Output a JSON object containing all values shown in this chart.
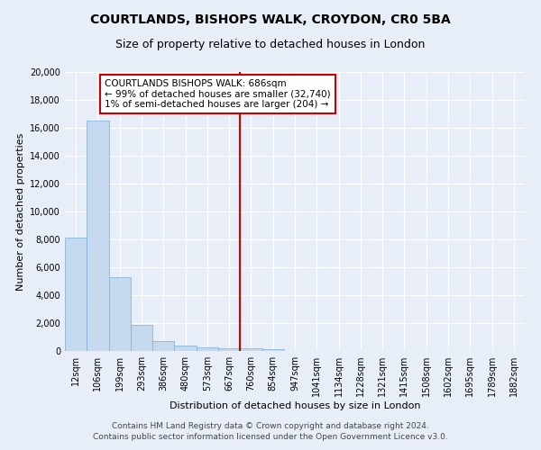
{
  "title": "COURTLANDS, BISHOPS WALK, CROYDON, CR0 5BA",
  "subtitle": "Size of property relative to detached houses in London",
  "xlabel": "Distribution of detached houses by size in London",
  "ylabel": "Number of detached properties",
  "categories": [
    "12sqm",
    "106sqm",
    "199sqm",
    "293sqm",
    "386sqm",
    "480sqm",
    "573sqm",
    "667sqm",
    "760sqm",
    "854sqm",
    "947sqm",
    "1041sqm",
    "1134sqm",
    "1228sqm",
    "1321sqm",
    "1415sqm",
    "1508sqm",
    "1602sqm",
    "1695sqm",
    "1789sqm",
    "1882sqm"
  ],
  "bar_values": [
    8100,
    16500,
    5300,
    1850,
    700,
    380,
    280,
    200,
    200,
    150,
    0,
    0,
    0,
    0,
    0,
    0,
    0,
    0,
    0,
    0,
    0
  ],
  "bar_color": "#c5d9ee",
  "bar_edge_color": "#7aafd4",
  "vline_x_index": 7,
  "vline_color": "#cc0000",
  "annotation_text": "COURTLANDS BISHOPS WALK: 686sqm\n← 99% of detached houses are smaller (32,740)\n1% of semi-detached houses are larger (204) →",
  "annotation_box_color": "#ffffff",
  "annotation_box_edge_color": "#cc0000",
  "ylim": [
    0,
    20000
  ],
  "yticks": [
    0,
    2000,
    4000,
    6000,
    8000,
    10000,
    12000,
    14000,
    16000,
    18000,
    20000
  ],
  "bg_color": "#e8eef8",
  "plot_bg_color": "#e8eef8",
  "footer_line1": "Contains HM Land Registry data © Crown copyright and database right 2024.",
  "footer_line2": "Contains public sector information licensed under the Open Government Licence v3.0.",
  "title_fontsize": 10,
  "subtitle_fontsize": 9,
  "label_fontsize": 8,
  "tick_fontsize": 7,
  "annotation_fontsize": 7.5,
  "footer_fontsize": 6.5
}
